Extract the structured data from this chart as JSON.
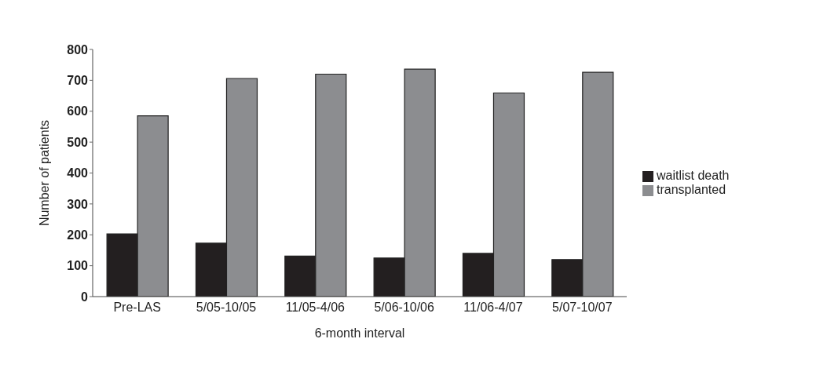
{
  "chart_data": {
    "type": "bar",
    "xlabel": "6-month interval",
    "ylabel": "Number of patients",
    "categories": [
      "Pre-LAS",
      "5/05-10/05",
      "11/05-4/06",
      "5/06-10/06",
      "11/06-4/07",
      "5/07-10/07"
    ],
    "series": [
      {
        "name": "waitlist death",
        "color": "#231f20",
        "values": [
          203,
          173,
          131,
          125,
          140,
          120
        ]
      },
      {
        "name": "transplanted",
        "color": "#8c8d90",
        "values": [
          585,
          706,
          720,
          736,
          659,
          726
        ]
      }
    ],
    "ylim": [
      0,
      800
    ],
    "yticks": [
      0,
      100,
      200,
      300,
      400,
      500,
      600,
      700,
      800
    ],
    "grid": false,
    "legend": "right"
  }
}
